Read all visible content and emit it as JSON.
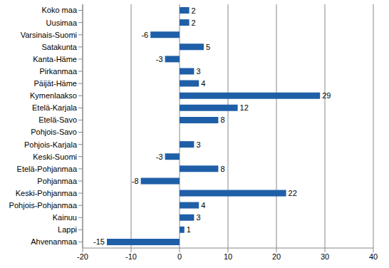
{
  "chart_data": {
    "type": "bar",
    "orientation": "horizontal",
    "categories": [
      "Koko maa",
      "Uusimaa",
      "Varsinais-Suomi",
      "Satakunta",
      "Kanta-Häme",
      "Pirkanmaa",
      "Päijät-Häme",
      "Kymenlaakso",
      "Etelä-Karjala",
      "Etelä-Savo",
      "Pohjois-Savo",
      "Pohjois-Karjala",
      "Keski-Suomi",
      "Etelä-Pohjanmaa",
      "Pohjanmaa",
      "Keski-Pohjanmaa",
      "Pohjois-Pohjanmaa",
      "Kainuu",
      "Lappi",
      "Ahvenanmaa"
    ],
    "values": [
      2,
      2,
      -6,
      5,
      -3,
      3,
      4,
      29,
      12,
      8,
      0,
      3,
      -3,
      8,
      -8,
      22,
      4,
      3,
      1,
      -15
    ],
    "color": "#1f5fa8",
    "xlim": [
      -20,
      40
    ],
    "xticks": [
      -20,
      -10,
      0,
      10,
      20,
      30,
      40
    ],
    "grid": true,
    "data_labels": true
  }
}
